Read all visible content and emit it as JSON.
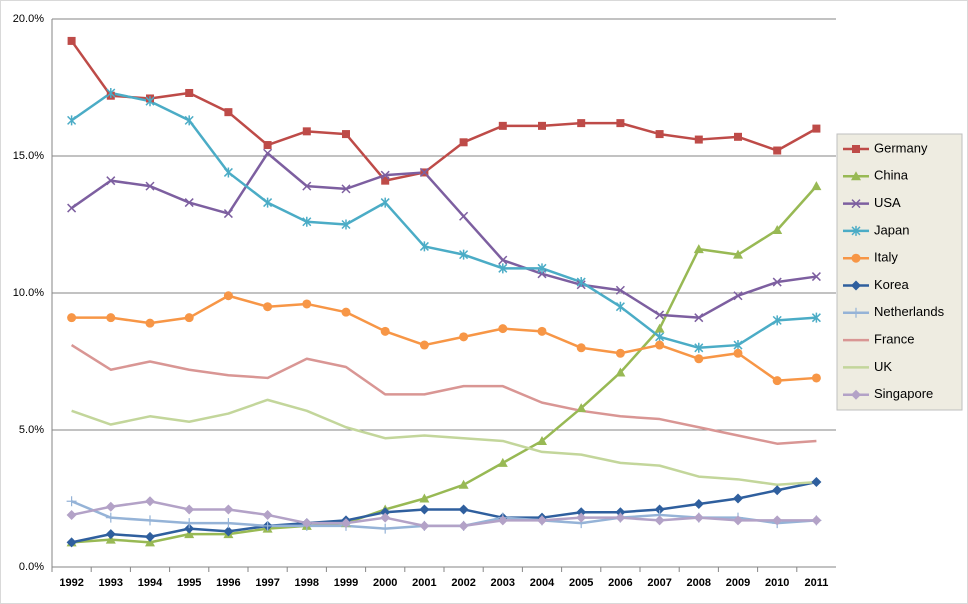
{
  "chart_data": {
    "type": "line",
    "categories": [
      "1992",
      "1993",
      "1994",
      "1995",
      "1996",
      "1997",
      "1998",
      "1999",
      "2000",
      "2001",
      "2002",
      "2003",
      "2004",
      "2005",
      "2006",
      "2007",
      "2008",
      "2009",
      "2010",
      "2011"
    ],
    "ylim": [
      0,
      20
    ],
    "yticks": [
      {
        "value": 0,
        "label": "0.0%"
      },
      {
        "value": 5,
        "label": "5.0%"
      },
      {
        "value": 10,
        "label": "10.0%"
      },
      {
        "value": 15,
        "label": "15.0%"
      },
      {
        "value": 20,
        "label": "20.0%"
      }
    ],
    "grid": true,
    "legend": "right",
    "series": [
      {
        "name": "Germany",
        "color": "#be4b48",
        "marker": "square",
        "values": [
          19.2,
          17.2,
          17.1,
          17.3,
          16.6,
          15.4,
          15.9,
          15.8,
          14.1,
          14.4,
          15.5,
          16.1,
          16.1,
          16.2,
          16.2,
          15.8,
          15.6,
          15.7,
          15.2,
          16.0
        ]
      },
      {
        "name": "China",
        "color": "#98b954",
        "marker": "triangle",
        "values": [
          0.9,
          1.0,
          0.9,
          1.2,
          1.2,
          1.4,
          1.5,
          1.6,
          2.1,
          2.5,
          3.0,
          3.8,
          4.6,
          5.8,
          7.1,
          8.7,
          11.6,
          11.4,
          12.3,
          13.9
        ]
      },
      {
        "name": "USA",
        "color": "#7d5fa0",
        "marker": "x",
        "values": [
          13.1,
          14.1,
          13.9,
          13.3,
          12.9,
          15.1,
          13.9,
          13.8,
          14.3,
          14.4,
          12.8,
          11.2,
          10.7,
          10.3,
          10.1,
          9.2,
          9.1,
          9.9,
          10.4,
          10.6
        ]
      },
      {
        "name": "Japan",
        "color": "#4bacc6",
        "marker": "star",
        "values": [
          16.3,
          17.3,
          17.0,
          16.3,
          14.4,
          13.3,
          12.6,
          12.5,
          13.3,
          11.7,
          11.4,
          10.9,
          10.9,
          10.4,
          9.5,
          8.4,
          8.0,
          8.1,
          9.0,
          9.1
        ]
      },
      {
        "name": "Italy",
        "color": "#f79646",
        "marker": "circle",
        "values": [
          9.1,
          9.1,
          8.9,
          9.1,
          9.9,
          9.5,
          9.6,
          9.3,
          8.6,
          8.1,
          8.4,
          8.7,
          8.6,
          8.0,
          7.8,
          8.1,
          7.6,
          7.8,
          6.8,
          6.9
        ]
      },
      {
        "name": "Korea",
        "color": "#2f5f9e",
        "marker": "diamond",
        "values": [
          0.9,
          1.2,
          1.1,
          1.4,
          1.3,
          1.5,
          1.6,
          1.7,
          2.0,
          2.1,
          2.1,
          1.8,
          1.8,
          2.0,
          2.0,
          2.1,
          2.3,
          2.5,
          2.8,
          3.1
        ]
      },
      {
        "name": "Netherlands",
        "color": "#95b3d7",
        "marker": "plus",
        "values": [
          2.4,
          1.8,
          1.7,
          1.6,
          1.6,
          1.5,
          1.5,
          1.5,
          1.4,
          1.5,
          1.5,
          1.8,
          1.7,
          1.6,
          1.8,
          1.9,
          1.8,
          1.8,
          1.6,
          1.7
        ]
      },
      {
        "name": "France",
        "color": "#d99694",
        "marker": "none",
        "values": [
          8.1,
          7.2,
          7.5,
          7.2,
          7.0,
          6.9,
          7.6,
          7.3,
          6.3,
          6.3,
          6.6,
          6.6,
          6.0,
          5.7,
          5.5,
          5.4,
          5.1,
          4.8,
          4.5,
          4.6
        ]
      },
      {
        "name": "UK",
        "color": "#c3d69b",
        "marker": "none",
        "values": [
          5.7,
          5.2,
          5.5,
          5.3,
          5.6,
          6.1,
          5.7,
          5.1,
          4.7,
          4.8,
          4.7,
          4.6,
          4.2,
          4.1,
          3.8,
          3.7,
          3.3,
          3.2,
          3.0,
          3.1
        ]
      },
      {
        "name": "Singapore",
        "color": "#b3a2c7",
        "marker": "diamond",
        "values": [
          1.9,
          2.2,
          2.4,
          2.1,
          2.1,
          1.9,
          1.6,
          1.6,
          1.8,
          1.5,
          1.5,
          1.7,
          1.7,
          1.8,
          1.8,
          1.7,
          1.8,
          1.7,
          1.7,
          1.7
        ]
      }
    ]
  }
}
